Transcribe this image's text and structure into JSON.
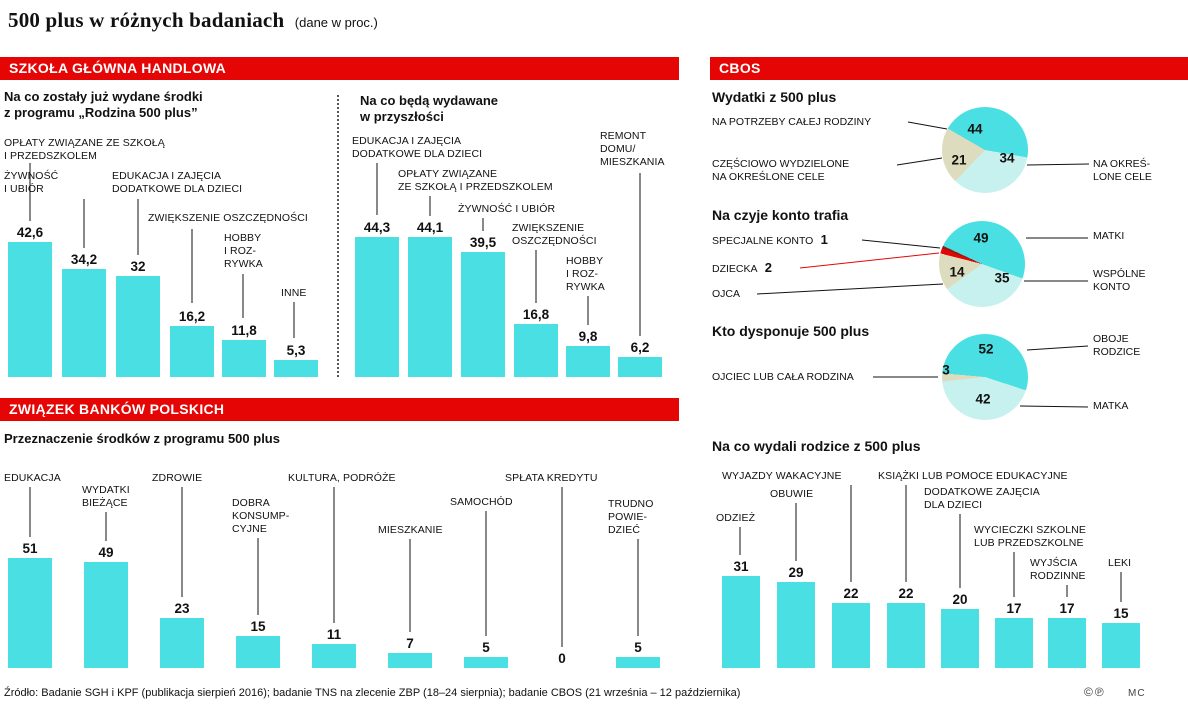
{
  "page": {
    "title": "500 plus w różnych badaniach",
    "title_note": "(dane w proc.)",
    "source": "Źródło: Badanie SGH i KPF (publikacja sierpień 2016); badanie TNS na zlecenie ZBP (18–24 sierpnia); badanie CBOS (21 września – 12 października)",
    "copyright_marks": "©℗",
    "credit": "MC"
  },
  "colors": {
    "accent_red": "#e60505",
    "bar_cyan": "#4adfe2",
    "pie_light_cyan": "#c6f1ef",
    "pie_beige": "#dedcbe",
    "pie_dark_red": "#8f1d14",
    "text": "#111111"
  },
  "sections": {
    "sgh": {
      "header": "SZKOŁA GŁÓWNA HANDLOWA",
      "chart_spent_title": "Na co zostały już wydane środki\nz programu „Rodzina 500 plus”",
      "chart_future_title": "Na co będą wydawane\nw przyszłości"
    },
    "zbp": {
      "header": "ZWIĄZEK BANKÓW POLSKICH",
      "chart_title": "Przeznaczenie środków z programu 500 plus"
    },
    "cbos": {
      "header": "CBOS",
      "pie_spending_title": "Wydatki z 500 plus",
      "pie_account_title": "Na czyje konto trafia",
      "pie_disposes_title": "Kto dysponuje 500 plus",
      "chart_title": "Na co wydali rodzice z 500 plus"
    }
  },
  "chart_data": [
    {
      "id": "sgh_spent",
      "type": "bar",
      "title": "Na co zostały już wydane środki z programu „Rodzina 500 plus”",
      "unit": "proc.",
      "categories": [
        "OPŁATY ZWIĄZANE ZE SZKOŁĄ I PRZEDSZKOLEM",
        "ŻYWNOŚĆ I UBIÓR",
        "EDUKACJA I ZAJĘCIA DODATKOWE DLA DZIECI",
        "ZWIĘKSZENIE OSZCZĘDNOŚCI",
        "HOBBY I ROZRYWKA",
        "INNE"
      ],
      "values": [
        42.6,
        34.2,
        32,
        16.2,
        11.8,
        5.3
      ],
      "value_labels": [
        "42,6",
        "34,2",
        "32",
        "16,2",
        "11,8",
        "5,3"
      ],
      "display_labels": [
        "OPŁATY ZWIĄZANE ZE SZKOŁĄ\nI PRZEDSZKOLEM",
        "ŻYWNOŚĆ\nI UBIÓR",
        "EDUKACJA I ZAJĘCIA\nDODATKOWE DLA DZIECI",
        "ZWIĘKSZENIE OSZCZĘDNOŚCI",
        "HOBBY\nI ROZ-\nRYWKA",
        "INNE"
      ]
    },
    {
      "id": "sgh_future",
      "type": "bar",
      "title": "Na co będą wydawane w przyszłości",
      "unit": "proc.",
      "categories": [
        "EDUKACJA I ZAJĘCIA DODATKOWE DLA DZIECI",
        "OPŁATY ZWIĄZANE ZE SZKOŁĄ I PRZEDSZKOLEM",
        "ŻYWNOŚĆ I UBIÓR",
        "ZWIĘKSZENIE OSZCZĘDNOŚCI",
        "HOBBY I ROZRYWKA",
        "REMONT DOMU/MIESZKANIA"
      ],
      "values": [
        44.3,
        44.1,
        39.5,
        16.8,
        9.8,
        6.2
      ],
      "value_labels": [
        "44,3",
        "44,1",
        "39,5",
        "16,8",
        "9,8",
        "6,2"
      ],
      "display_labels": [
        "EDUKACJA I ZAJĘCIA\nDODATKOWE DLA DZIECI",
        "OPŁATY ZWIĄZANE\nZE SZKOŁĄ I PRZEDSZKOLEM",
        "ŻYWNOŚĆ I UBIÓR",
        "ZWIĘKSZENIE\nOSZCZĘDNOŚCI",
        "HOBBY\nI ROZ-\nRYWKA",
        "REMONT\nDOMU/\nMIESZKANIA"
      ]
    },
    {
      "id": "zbp_alloc",
      "type": "bar",
      "title": "Przeznaczenie środków z programu 500 plus",
      "unit": "proc.",
      "categories": [
        "EDUKACJA",
        "WYDATKI BIEŻĄCE",
        "ZDROWIE",
        "DOBRA KONSUMPCYJNE",
        "KULTURA, PODRÓŻE",
        "MIESZKANIE",
        "SAMOCHÓD",
        "SPŁATA KREDYTU",
        "TRUDNO POWIEDZIEĆ"
      ],
      "values": [
        51,
        49,
        23,
        15,
        11,
        7,
        5,
        0,
        5
      ],
      "value_labels": [
        "51",
        "49",
        "23",
        "15",
        "11",
        "7",
        "5",
        "0",
        "5"
      ],
      "display_labels": [
        "EDUKACJA",
        "WYDATKI\nBIEŻĄCE",
        "ZDROWIE",
        "DOBRA\nKONSUMP-\nCYJNE",
        "KULTURA, PODRÓŻE",
        "MIESZKANIE",
        "SAMOCHÓD",
        "SPŁATA KREDYTU",
        "TRUDNO\nPOWIE-\nDZIEĆ"
      ]
    },
    {
      "id": "cbos_spending",
      "type": "pie",
      "title": "Wydatki z 500 plus",
      "unit": "proc.",
      "segments": [
        {
          "label": "NA POTRZEBY CAŁEJ RODZINY",
          "value": 44
        },
        {
          "label": "NA OKREŚLONE CELE",
          "display": "NA OKREŚ-\nLONE CELE",
          "value": 34
        },
        {
          "label": "CZĘŚCIOWO WYDZIELONE NA OKREŚLONE CELE",
          "display": "CZĘŚCIOWO WYDZIELONE\nNA OKREŚLONE CELE",
          "value": 21
        }
      ]
    },
    {
      "id": "cbos_account",
      "type": "pie",
      "title": "Na czyje konto trafia",
      "unit": "proc.",
      "segments": [
        {
          "label": "MATKI",
          "value": 49
        },
        {
          "label": "WSPÓLNE KONTO",
          "display": "WSPÓLNE\nKONTO",
          "value": 35
        },
        {
          "label": "OJCA",
          "value": 14
        },
        {
          "label": "DZIECKA",
          "value": 2
        },
        {
          "label": "SPECJALNE KONTO",
          "value": 1
        }
      ]
    },
    {
      "id": "cbos_disposes",
      "type": "pie",
      "title": "Kto dysponuje 500 plus",
      "unit": "proc.",
      "segments": [
        {
          "label": "OBOJE RODZICE",
          "display": "OBOJE\nRODZICE",
          "value": 52
        },
        {
          "label": "MATKA",
          "value": 42
        },
        {
          "label": "OJCIEC LUB CAŁA RODZINA",
          "value": 3
        }
      ]
    },
    {
      "id": "cbos_spent_on",
      "type": "bar",
      "title": "Na co wydali rodzice z 500 plus",
      "unit": "proc.",
      "categories": [
        "ODZIEŻ",
        "OBUWIE",
        "WYJAZDY WAKACYJNE",
        "KSIĄŻKI LUB POMOCE EDUKACYJNE",
        "DODATKOWE ZAJĘCIA DLA DZIECI",
        "WYCIECZKI SZKOLNE LUB PRZEDSZKOLNE",
        "WYJŚCIA RODZINNE",
        "LEKI"
      ],
      "values": [
        31,
        29,
        22,
        22,
        20,
        17,
        17,
        15
      ],
      "value_labels": [
        "31",
        "29",
        "22",
        "22",
        "20",
        "17",
        "17",
        "15"
      ],
      "display_labels": [
        "ODZIEŻ",
        "OBUWIE",
        "WYJAZDY WAKACYJNE",
        "KSIĄŻKI LUB POMOCE EDUKACYJNE",
        "DODATKOWE ZAJĘCIA\nDLA DZIECI",
        "WYCIECZKI SZKOLNE\nLUB PRZEDSZKOLNE",
        "WYJŚCIA\nRODZINNE",
        "LEKI"
      ]
    }
  ]
}
